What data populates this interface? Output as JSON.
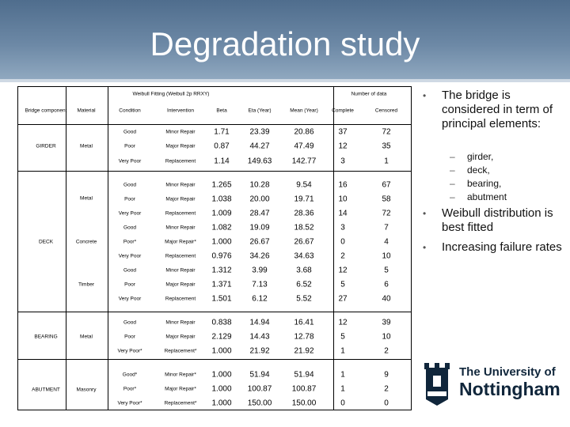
{
  "slide": {
    "title": "Degradation study",
    "table": {
      "group_header_weibull": "Weibull Fitting (Weibull 2p RRXY)",
      "group_header_number": "Number of data",
      "columns": [
        "Bridge component",
        "Material",
        "Condition",
        "Intervention",
        "Beta",
        "Eta (Year)",
        "Mean (Year)",
        "Complete",
        "Censored"
      ],
      "rows": [
        {
          "condition": "Good",
          "intervention": "Minor Repair",
          "beta": "1.71",
          "eta": "23.39",
          "mean": "20.86",
          "complete": "37",
          "censored": "72"
        },
        {
          "condition": "Poor",
          "intervention": "Major Repair",
          "beta": "0.87",
          "eta": "44.27",
          "mean": "47.49",
          "complete": "12",
          "censored": "35"
        },
        {
          "condition": "Very Poor",
          "intervention": "Replacement",
          "beta": "1.14",
          "eta": "149.63",
          "mean": "142.77",
          "complete": "3",
          "censored": "1"
        },
        {
          "condition": "Good",
          "intervention": "Minor Repair",
          "beta": "1.265",
          "eta": "10.28",
          "mean": "9.54",
          "complete": "16",
          "censored": "67"
        },
        {
          "condition": "Poor",
          "intervention": "Major Repair",
          "beta": "1.038",
          "eta": "20.00",
          "mean": "19.71",
          "complete": "10",
          "censored": "58"
        },
        {
          "condition": "Very Poor",
          "intervention": "Replacement",
          "beta": "1.009",
          "eta": "28.47",
          "mean": "28.36",
          "complete": "14",
          "censored": "72"
        },
        {
          "condition": "Good",
          "intervention": "Minor Repair",
          "beta": "1.082",
          "eta": "19.09",
          "mean": "18.52",
          "complete": "3",
          "censored": "7"
        },
        {
          "condition": "Poor*",
          "intervention": "Major Repair*",
          "beta": "1.000",
          "eta": "26.67",
          "mean": "26.67",
          "complete": "0",
          "censored": "4"
        },
        {
          "condition": "Very Poor",
          "intervention": "Replacement",
          "beta": "0.976",
          "eta": "34.26",
          "mean": "34.63",
          "complete": "2",
          "censored": "10"
        },
        {
          "condition": "Good",
          "intervention": "Minor Repair",
          "beta": "1.312",
          "eta": "3.99",
          "mean": "3.68",
          "complete": "12",
          "censored": "5"
        },
        {
          "condition": "Poor",
          "intervention": "Major Repair",
          "beta": "1.371",
          "eta": "7.13",
          "mean": "6.52",
          "complete": "5",
          "censored": "6"
        },
        {
          "condition": "Very Poor",
          "intervention": "Replacement",
          "beta": "1.501",
          "eta": "6.12",
          "mean": "5.52",
          "complete": "27",
          "censored": "40"
        },
        {
          "condition": "Good",
          "intervention": "Minor Repair",
          "beta": "0.838",
          "eta": "14.94",
          "mean": "16.41",
          "complete": "12",
          "censored": "39"
        },
        {
          "condition": "Poor",
          "intervention": "Major Repair",
          "beta": "2.129",
          "eta": "14.43",
          "mean": "12.78",
          "complete": "5",
          "censored": "10"
        },
        {
          "condition": "Very Poor*",
          "intervention": "Replacement*",
          "beta": "1.000",
          "eta": "21.92",
          "mean": "21.92",
          "complete": "1",
          "censored": "2"
        },
        {
          "condition": "Good*",
          "intervention": "Minor Repair*",
          "beta": "1.000",
          "eta": "51.94",
          "mean": "51.94",
          "complete": "1",
          "censored": "9"
        },
        {
          "condition": "Poor*",
          "intervention": "Major Repair*",
          "beta": "1.000",
          "eta": "100.87",
          "mean": "100.87",
          "complete": "1",
          "censored": "2"
        },
        {
          "condition": "Very Poor*",
          "intervention": "Replacement*",
          "beta": "1.000",
          "eta": "150.00",
          "mean": "150.00",
          "complete": "0",
          "censored": "0"
        }
      ],
      "components": [
        "GIRDER",
        "DECK",
        "BEARING",
        "ABUTMENT"
      ],
      "materials": [
        "Metal",
        "Metal",
        "Concrete",
        "Timber",
        "Metal",
        "Masonry"
      ]
    },
    "bullets": [
      {
        "text": "The bridge is considered in term of principal elements:",
        "sub": [
          "girder,",
          "deck,",
          "bearing,",
          "abutment"
        ]
      },
      {
        "text": "Weibull distribution is best fitted"
      },
      {
        "text": "Increasing failure rates"
      }
    ],
    "logo": {
      "line1": "The University of",
      "line2": "Nottingham"
    }
  }
}
